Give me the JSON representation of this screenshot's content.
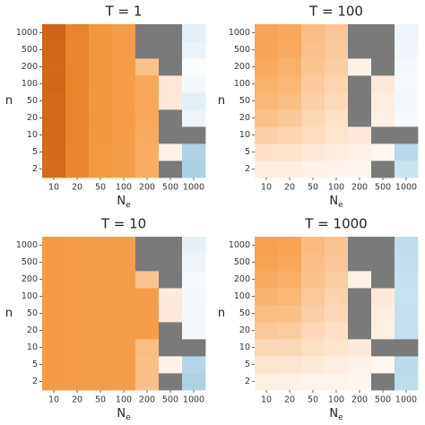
{
  "chart_data": [
    {
      "type": "heatmap",
      "title": "T = 1",
      "xlabel": {
        "text": "N",
        "subscript": "e"
      },
      "ylabel": "n",
      "x_categories": [
        10,
        20,
        50,
        100,
        200,
        500,
        1000
      ],
      "y_categories": [
        2,
        5,
        10,
        20,
        50,
        100,
        200,
        500,
        1000
      ],
      "cells": [
        [
          "#d56c20",
          "#ea8830",
          "#f39942",
          "#f59e49",
          "#f9ad64",
          "#7a7a7a",
          "#a9d0e4"
        ],
        [
          "#d46a1e",
          "#ea8830",
          "#f39942",
          "#f59e49",
          "#f9ad64",
          "#fef3ea",
          "#aed3e6"
        ],
        [
          "#d3691d",
          "#e9872f",
          "#f29841",
          "#f59d48",
          "#f8aa60",
          "#7a7a7a",
          "#7a7a7a"
        ],
        [
          "#d2681c",
          "#e9862e",
          "#f29740",
          "#f59c47",
          "#f8a85c",
          "#7a7a7a",
          "#eef5fa"
        ],
        [
          "#d3691d",
          "#e9872f",
          "#f29841",
          "#f59d48",
          "#f8a85c",
          "#fce7d8",
          "#e4f0f8"
        ],
        [
          "#d16719",
          "#e8852d",
          "#f29740",
          "#f59d48",
          "#f8a85c",
          "#fce7d8",
          "#f5f9fc"
        ],
        [
          "#d2681c",
          "#e9862e",
          "#f29740",
          "#f59c47",
          "#fbc28c",
          "#7a7a7a",
          "#fafcfe"
        ],
        [
          "#d0661a",
          "#e9862e",
          "#f29740",
          "#f59c47",
          "#7a7a7a",
          "#7a7a7a",
          "#eaf3f9"
        ],
        [
          "#cf6318",
          "#e8842c",
          "#f29740",
          "#f59c47",
          "#7a7a7a",
          "#7a7a7a",
          "#e3eff8"
        ]
      ]
    },
    {
      "type": "heatmap",
      "title": "T = 100",
      "xlabel": {
        "text": "N",
        "subscript": "e"
      },
      "ylabel": "n",
      "x_categories": [
        10,
        20,
        50,
        100,
        200,
        500,
        1000
      ],
      "y_categories": [
        2,
        5,
        10,
        20,
        50,
        100,
        200,
        500,
        1000
      ],
      "cells": [
        [
          "#feeee2",
          "#feefe4",
          "#fff2e9",
          "#fff3ec",
          "#fff5ef",
          "#7a7a7a",
          "#cbe3ef"
        ],
        [
          "#fde0c6",
          "#fde3cb",
          "#fee8d6",
          "#feecdf",
          "#fff1e7",
          "#fff6f0",
          "#b9d9ea"
        ],
        [
          "#fccfa6",
          "#fdd3ad",
          "#fddcbf",
          "#fee4ce",
          "#feeadc",
          "#7a7a7a",
          "#7a7a7a"
        ],
        [
          "#fbc18a",
          "#fcc796",
          "#fdd6b5",
          "#fde0c6",
          "#7a7a7a",
          "#feefe4",
          "#f6fafd"
        ],
        [
          "#fab877",
          "#fbbe82",
          "#fccfa6",
          "#fdd9b9",
          "#7a7a7a",
          "#fdeee2",
          "#f3f8fc"
        ],
        [
          "#f9b06b",
          "#fab775",
          "#fcca9c",
          "#fdd4b0",
          "#7a7a7a",
          "#fde9da",
          "#f7fafd"
        ],
        [
          "#f8a95e",
          "#f9b06b",
          "#fbc590",
          "#fccda3",
          "#fff3e8",
          "#7a7a7a",
          "#f4f9fc"
        ],
        [
          "#f7a456",
          "#f8aa60",
          "#fbc28c",
          "#fcc99d",
          "#7a7a7a",
          "#7a7a7a",
          "#f0f6fb"
        ],
        [
          "#f7a456",
          "#f8a85c",
          "#fbbf86",
          "#fcc597",
          "#7a7a7a",
          "#7a7a7a",
          "#edf5fa"
        ]
      ]
    },
    {
      "type": "heatmap",
      "title": "T = 10",
      "xlabel": {
        "text": "N",
        "subscript": "e"
      },
      "ylabel": "n",
      "x_categories": [
        10,
        20,
        50,
        100,
        200,
        500,
        1000
      ],
      "y_categories": [
        2,
        5,
        10,
        20,
        50,
        100,
        200,
        500,
        1000
      ],
      "cells": [
        [
          "#f39a45",
          "#f49c47",
          "#f49d49",
          "#f59e4a",
          "#fbbf88",
          "#7a7a7a",
          "#acd2e5"
        ],
        [
          "#f39a45",
          "#f49c47",
          "#f49d49",
          "#f59e4a",
          "#fbbf88",
          "#fef3ea",
          "#b4d6e8"
        ],
        [
          "#f39a45",
          "#f49c47",
          "#f49d49",
          "#f59e4a",
          "#fbbd84",
          "#7a7a7a",
          "#7a7a7a"
        ],
        [
          "#f39a45",
          "#f49c47",
          "#f49d49",
          "#f59e4a",
          "#f59e4a",
          "#7a7a7a",
          "#f3f8fc"
        ],
        [
          "#f39a45",
          "#f49c47",
          "#f49d49",
          "#f59e4a",
          "#f59e4a",
          "#fde9db",
          "#f1f7fb"
        ],
        [
          "#f39a45",
          "#f49c47",
          "#f49d49",
          "#f59e4a",
          "#f59e4a",
          "#fdebde",
          "#f4f9fc"
        ],
        [
          "#f39a45",
          "#f49c47",
          "#f49d49",
          "#f59e4a",
          "#fbc48f",
          "#7a7a7a",
          "#f7fafd"
        ],
        [
          "#f39a45",
          "#f49c47",
          "#f49d49",
          "#f59e4a",
          "#7a7a7a",
          "#7a7a7a",
          "#eef5fa"
        ],
        [
          "#f39a45",
          "#f49c47",
          "#f49d49",
          "#f59e4a",
          "#7a7a7a",
          "#7a7a7a",
          "#e6f1f8"
        ]
      ]
    },
    {
      "type": "heatmap",
      "title": "T = 1000",
      "xlabel": {
        "text": "N",
        "subscript": "e"
      },
      "ylabel": "n",
      "x_categories": [
        10,
        20,
        50,
        100,
        200,
        500,
        1000
      ],
      "y_categories": [
        2,
        5,
        10,
        20,
        50,
        100,
        200,
        500,
        1000
      ],
      "cells": [
        [
          "#fff0e5",
          "#fff1e7",
          "#fff3eb",
          "#fff4ed",
          "#fff6f0",
          "#7a7a7a",
          "#bfdceb"
        ],
        [
          "#fee4ce",
          "#fee6d2",
          "#feead9",
          "#feede1",
          "#fff2e9",
          "#fff7f1",
          "#bcdaea"
        ],
        [
          "#fdd6b4",
          "#fdd8b8",
          "#fddfc5",
          "#fee5d0",
          "#feeadc",
          "#7a7a7a",
          "#7a7a7a"
        ],
        [
          "#fcc898",
          "#fccb9e",
          "#fdd7b7",
          "#fddfc5",
          "#7a7a7a",
          "#feefe4",
          "#c4dfed"
        ],
        [
          "#fbbd82",
          "#fbc088",
          "#fccea4",
          "#fdd8b8",
          "#7a7a7a",
          "#fdeee2",
          "#c6e0ee"
        ],
        [
          "#fab372",
          "#fab776",
          "#fcc898",
          "#fdd2ac",
          "#7a7a7a",
          "#fde9da",
          "#c8e1ee"
        ],
        [
          "#f9aa62",
          "#f9ae68",
          "#fbc28c",
          "#fccba0",
          "#fff3e8",
          "#7a7a7a",
          "#c6e0ee"
        ],
        [
          "#f7a354",
          "#f8a75a",
          "#fbbe84",
          "#fcc698",
          "#7a7a7a",
          "#7a7a7a",
          "#c3deec"
        ],
        [
          "#f6a050",
          "#f7a456",
          "#fbbb80",
          "#fcc494",
          "#7a7a7a",
          "#7a7a7a",
          "#c1ddec"
        ]
      ]
    }
  ]
}
